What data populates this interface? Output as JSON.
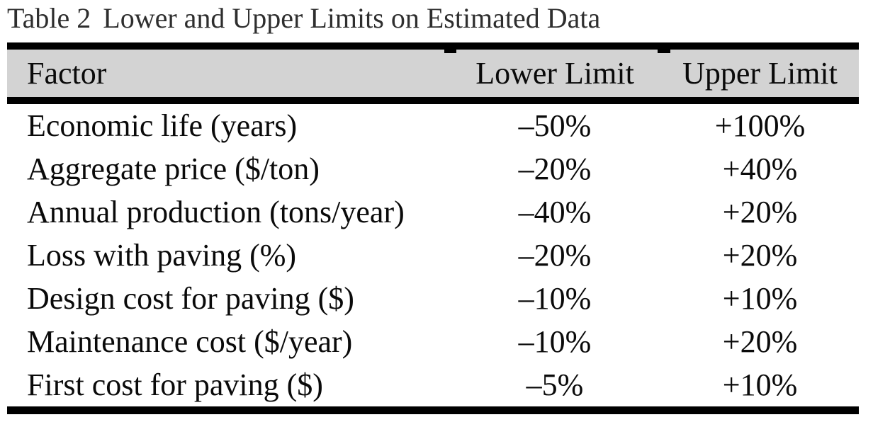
{
  "caption": {
    "label": "Table 2",
    "text": "Lower and Upper Limits on Estimated Data"
  },
  "table": {
    "columns": [
      "Factor",
      "Lower Limit",
      "Upper Limit"
    ],
    "rows": [
      {
        "factor": "Economic life (years)",
        "lower": "–50%",
        "upper": "+100%"
      },
      {
        "factor": "Aggregate price ($/ton)",
        "lower": "–20%",
        "upper": "+40%"
      },
      {
        "factor": "Annual production (tons/year)",
        "lower": "–40%",
        "upper": "+20%"
      },
      {
        "factor": "Loss with paving (%)",
        "lower": "–20%",
        "upper": "+20%"
      },
      {
        "factor": "Design cost for paving ($)",
        "lower": "–10%",
        "upper": "+10%"
      },
      {
        "factor": "Maintenance cost ($/year)",
        "lower": "–10%",
        "upper": "+20%"
      },
      {
        "factor": "First cost for paving ($)",
        "lower": "–5%",
        "upper": "+10%"
      }
    ]
  },
  "colors": {
    "header_bg": "#d3d3d3",
    "rule": "#000000",
    "text": "#0a0a0a",
    "caption_text": "#2e2e2e",
    "page_bg": "#ffffff"
  }
}
